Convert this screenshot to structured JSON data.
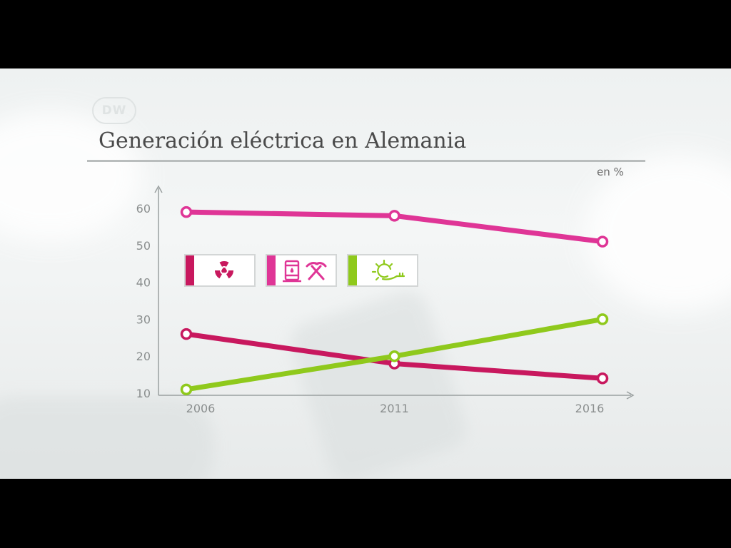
{
  "header": {
    "logo_text": "DW",
    "title": "Generación eléctrica en Alemania",
    "unit": "en %"
  },
  "legend": [
    {
      "icon": "radiation-icon",
      "color": "#c8185e"
    },
    {
      "icon": "oil-barrel-hammer-pick-icon",
      "color": "#df3596"
    },
    {
      "icon": "sun-plug-icon",
      "color": "#8fc91c"
    }
  ],
  "chart_data": {
    "type": "line",
    "title": "Generación eléctrica en Alemania",
    "ylabel": "en %",
    "x": [
      "2006",
      "2011",
      "2016"
    ],
    "ylim": [
      10,
      60
    ],
    "yticks": [
      60,
      50,
      40,
      30,
      20,
      10
    ],
    "grid": false,
    "series": [
      {
        "icon": "radiation-icon",
        "color": "#c8185e",
        "values": [
          26,
          18,
          14
        ]
      },
      {
        "icon": "oil-barrel-hammer-pick-icon",
        "color": "#df3596",
        "values": [
          59,
          58,
          51
        ]
      },
      {
        "icon": "sun-plug-icon",
        "color": "#8fc91c",
        "values": [
          11,
          20,
          30
        ]
      }
    ]
  }
}
